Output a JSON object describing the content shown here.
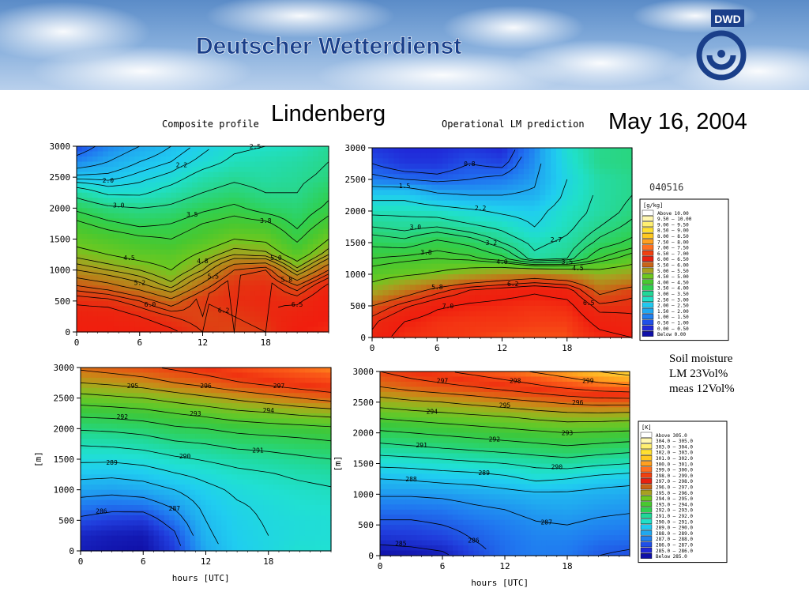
{
  "header": {
    "org_name": "Deutscher Wetterdienst",
    "logo_text": "DWD"
  },
  "title": {
    "place": "Lindenberg",
    "date": "May 16, 2004"
  },
  "panels": {
    "left_title": "Composite profile",
    "right_title": "Operational LM prediction",
    "run_code": "040516"
  },
  "note": {
    "line1": "Soil moisture",
    "line2": "LM 23Vol%",
    "line3": "meas 12Vol%"
  },
  "chart_data": [
    {
      "type": "heatmap",
      "id": "humidity_composite",
      "title": "Composite profile",
      "xlabel": "",
      "ylabel": "",
      "xlim": [
        0,
        24
      ],
      "ylim": [
        0,
        3000
      ],
      "xticks": [
        0,
        6,
        12,
        18
      ],
      "yticks": [
        0,
        500,
        1000,
        1500,
        2000,
        2500,
        3000
      ],
      "x": [
        0,
        3,
        6,
        9,
        12,
        15,
        18,
        21,
        24
      ],
      "y": [
        0,
        250,
        500,
        750,
        1000,
        1250,
        1500,
        1750,
        2000,
        2250,
        2500,
        2750,
        3000
      ],
      "values": [
        [
          7.0,
          7.0,
          6.9,
          6.6,
          6.2,
          6.0,
          6.2,
          7.0,
          7.2
        ],
        [
          6.8,
          6.8,
          6.5,
          6.2,
          6.0,
          6.2,
          6.4,
          6.8,
          7.0
        ],
        [
          6.4,
          6.3,
          6.0,
          5.6,
          6.2,
          6.4,
          6.5,
          6.4,
          7.0
        ],
        [
          5.8,
          5.6,
          5.3,
          4.9,
          5.6,
          6.3,
          6.4,
          5.8,
          6.6
        ],
        [
          5.2,
          5.0,
          4.8,
          4.5,
          5.0,
          5.8,
          6.0,
          4.9,
          5.8
        ],
        [
          4.7,
          4.5,
          4.3,
          4.2,
          4.6,
          5.0,
          4.9,
          4.2,
          5.0
        ],
        [
          4.3,
          4.1,
          3.9,
          3.8,
          4.1,
          4.5,
          4.4,
          3.7,
          4.5
        ],
        [
          3.9,
          3.6,
          3.4,
          3.5,
          3.8,
          4.0,
          3.9,
          3.4,
          4.0
        ],
        [
          3.4,
          3.1,
          3.0,
          3.1,
          3.4,
          3.6,
          3.3,
          3.2,
          3.6
        ],
        [
          2.8,
          2.4,
          2.4,
          2.7,
          3.0,
          3.2,
          3.0,
          3.0,
          3.4
        ],
        [
          1.9,
          1.9,
          2.1,
          2.3,
          2.7,
          2.9,
          2.8,
          2.9,
          3.1
        ],
        [
          1.2,
          1.5,
          1.8,
          2.0,
          2.3,
          2.6,
          2.7,
          2.8,
          3.0
        ],
        [
          0.7,
          1.2,
          1.5,
          1.8,
          2.1,
          2.4,
          2.5,
          2.6,
          2.9
        ]
      ],
      "contour_labels": [
        "1.0",
        "1.5",
        "1.8",
        "2.0",
        "2.2",
        "2.5",
        "3.0",
        "3.5",
        "3.8",
        "4.5",
        "4.8",
        "5.0",
        "5.2",
        "5.5",
        "5.8",
        "6.0",
        "6.2",
        "6.5"
      ]
    },
    {
      "type": "heatmap",
      "id": "humidity_lm",
      "title": "Operational LM prediction",
      "xlabel": "",
      "ylabel": "",
      "xlim": [
        0,
        24
      ],
      "ylim": [
        0,
        3000
      ],
      "xticks": [
        0,
        6,
        12,
        18
      ],
      "yticks": [
        0,
        500,
        1000,
        1500,
        2000,
        2500,
        3000
      ],
      "x": [
        0,
        3,
        6,
        9,
        12,
        15,
        18,
        21,
        24
      ],
      "y": [
        0,
        250,
        500,
        750,
        1000,
        1250,
        1500,
        1750,
        2000,
        2250,
        2500,
        2750,
        3000
      ],
      "values": [
        [
          6.6,
          7.3,
          7.4,
          7.5,
          7.6,
          7.6,
          7.6,
          7.2,
          7.0
        ],
        [
          6.4,
          7.0,
          7.3,
          7.4,
          7.4,
          7.5,
          7.5,
          6.8,
          6.6
        ],
        [
          5.8,
          6.4,
          6.9,
          7.1,
          7.2,
          7.3,
          7.2,
          6.3,
          6.4
        ],
        [
          4.8,
          5.4,
          6.0,
          6.5,
          6.7,
          6.9,
          6.7,
          5.6,
          6.0
        ],
        [
          4.2,
          4.4,
          4.6,
          4.9,
          5.2,
          5.4,
          5.2,
          4.8,
          5.0
        ],
        [
          3.8,
          3.9,
          4.0,
          3.9,
          3.6,
          2.8,
          3.0,
          3.8,
          4.2
        ],
        [
          3.4,
          3.3,
          3.6,
          3.4,
          3.0,
          2.6,
          2.8,
          3.3,
          3.6
        ],
        [
          3.0,
          2.9,
          3.0,
          2.8,
          2.6,
          2.2,
          2.6,
          3.0,
          3.3
        ],
        [
          2.6,
          2.6,
          2.5,
          2.3,
          2.1,
          2.0,
          2.5,
          2.8,
          3.1
        ],
        [
          2.0,
          2.0,
          1.6,
          1.5,
          1.5,
          1.6,
          2.3,
          2.8,
          3.0
        ],
        [
          1.1,
          1.0,
          0.9,
          1.0,
          1.1,
          1.4,
          2.2,
          2.8,
          3.0
        ],
        [
          0.8,
          0.6,
          0.6,
          0.8,
          0.7,
          1.3,
          2.3,
          3.0,
          3.1
        ],
        [
          0.6,
          0.5,
          0.5,
          0.6,
          0.5,
          1.2,
          2.4,
          3.0,
          3.1
        ]
      ],
      "contour_labels": [
        "0.5",
        "0.8",
        "1.0",
        "1.5",
        "2.2",
        "2.7",
        "3.0",
        "3.2",
        "3.5",
        "3.8",
        "4.0",
        "4.5",
        "5.8",
        "6.2",
        "6.5",
        "7.0"
      ]
    },
    {
      "type": "heatmap",
      "id": "theta_composite",
      "title": "",
      "xlabel": "hours [UTC]",
      "ylabel": "[m]",
      "xlim": [
        0,
        24
      ],
      "ylim": [
        0,
        3000
      ],
      "xticks": [
        0,
        6,
        12,
        18
      ],
      "yticks": [
        0,
        500,
        1000,
        1500,
        2000,
        2500,
        3000
      ],
      "x": [
        0,
        3,
        6,
        9,
        12,
        15,
        18,
        21,
        24
      ],
      "y": [
        0,
        250,
        500,
        750,
        1000,
        1250,
        1500,
        1750,
        2000,
        2250,
        2500,
        2750,
        3000
      ],
      "values": [
        [
          284.8,
          284.6,
          284.5,
          285.5,
          287.5,
          288.5,
          289.0,
          289.5,
          289.5
        ],
        [
          285.0,
          284.8,
          284.7,
          285.8,
          287.8,
          288.6,
          289.0,
          289.3,
          289.4
        ],
        [
          285.8,
          285.5,
          285.4,
          286.5,
          288.0,
          288.7,
          289.1,
          289.3,
          289.4
        ],
        [
          286.6,
          286.4,
          286.5,
          287.2,
          288.3,
          288.9,
          289.2,
          289.5,
          289.6
        ],
        [
          287.4,
          287.3,
          287.5,
          288.0,
          288.7,
          289.2,
          289.5,
          289.7,
          289.9
        ],
        [
          288.3,
          288.2,
          288.4,
          288.9,
          289.3,
          289.7,
          289.9,
          290.2,
          290.4
        ],
        [
          289.2,
          289.2,
          289.4,
          289.8,
          290.1,
          290.4,
          290.6,
          290.8,
          291.0
        ],
        [
          290.1,
          290.2,
          290.4,
          290.8,
          291.0,
          291.3,
          291.4,
          291.6,
          291.8
        ],
        [
          291.1,
          291.2,
          291.4,
          291.8,
          292.0,
          292.3,
          292.5,
          292.6,
          292.8
        ],
        [
          292.3,
          292.4,
          292.6,
          293.0,
          293.3,
          293.7,
          293.9,
          294.2,
          294.4
        ],
        [
          293.6,
          293.8,
          294.0,
          294.4,
          294.8,
          295.2,
          295.6,
          296.0,
          296.4
        ],
        [
          295.0,
          295.2,
          295.5,
          296.0,
          296.4,
          296.9,
          297.3,
          297.7,
          298.0
        ],
        [
          296.2,
          296.5,
          296.8,
          297.2,
          297.6,
          298.1,
          298.5,
          298.8,
          299.1
        ]
      ],
      "contour_labels": [
        "286",
        "287",
        "288",
        "289",
        "290",
        "291",
        "292",
        "293",
        "294",
        "295",
        "296",
        "297"
      ]
    },
    {
      "type": "heatmap",
      "id": "theta_lm",
      "title": "",
      "xlabel": "hours [UTC]",
      "ylabel": "[m]",
      "xlim": [
        0,
        24
      ],
      "ylim": [
        0,
        3000
      ],
      "xticks": [
        0,
        6,
        12,
        18
      ],
      "yticks": [
        0,
        500,
        1000,
        1500,
        2000,
        2500,
        3000
      ],
      "x": [
        0,
        3,
        6,
        9,
        12,
        15,
        18,
        21,
        24
      ],
      "y": [
        0,
        250,
        500,
        750,
        1000,
        1250,
        1500,
        1750,
        2000,
        2250,
        2500,
        2750,
        3000
      ],
      "values": [
        [
          284.5,
          284.6,
          284.8,
          285.6,
          286.3,
          286.6,
          286.5,
          286.0,
          285.8
        ],
        [
          285.2,
          285.3,
          285.5,
          286.0,
          286.4,
          286.7,
          286.7,
          286.4,
          286.3
        ],
        [
          285.8,
          285.8,
          286.0,
          286.3,
          286.6,
          286.9,
          287.0,
          286.8,
          286.7
        ],
        [
          286.4,
          286.4,
          286.5,
          286.8,
          287.0,
          287.3,
          287.4,
          287.2,
          287.1
        ],
        [
          287.1,
          287.1,
          287.2,
          287.4,
          287.6,
          287.8,
          287.8,
          287.6,
          287.5
        ],
        [
          288.0,
          288.1,
          288.3,
          288.4,
          288.7,
          289.2,
          289.0,
          288.6,
          288.4
        ],
        [
          289.3,
          289.4,
          289.6,
          289.8,
          290.0,
          290.3,
          290.5,
          290.2,
          290.0
        ],
        [
          290.6,
          290.8,
          291.0,
          291.2,
          291.4,
          291.6,
          291.8,
          291.6,
          291.4
        ],
        [
          291.8,
          292.0,
          292.2,
          292.4,
          292.6,
          292.8,
          293.0,
          292.9,
          292.8
        ],
        [
          293.1,
          293.3,
          293.5,
          293.7,
          293.9,
          294.2,
          294.4,
          294.4,
          294.3
        ],
        [
          294.5,
          294.8,
          295.0,
          295.3,
          295.6,
          295.9,
          296.2,
          296.4,
          296.4
        ],
        [
          296.0,
          296.4,
          296.7,
          297.0,
          297.4,
          297.8,
          298.2,
          298.6,
          298.8
        ],
        [
          297.0,
          297.5,
          297.9,
          298.3,
          298.7,
          299.1,
          299.5,
          300.0,
          300.4
        ]
      ],
      "contour_labels": [
        "285",
        "286",
        "287",
        "288",
        "289",
        "290",
        "291",
        "292",
        "293",
        "294",
        "295",
        "296",
        "297",
        "298",
        "299",
        "300"
      ]
    }
  ],
  "legend_q": {
    "unit": "[g/kg]",
    "rows": [
      "Above  10.00",
      "9.50 – 10.00",
      "9.00 – 9.50",
      "8.50 – 9.00",
      "8.00 – 8.50",
      "7.50 – 8.00",
      "7.00 – 7.50",
      "6.50 – 7.00",
      "6.00 – 6.50",
      "5.50 – 6.00",
      "5.00 – 5.50",
      "4.50 – 5.00",
      "4.00 – 4.50",
      "3.50 – 4.00",
      "3.00 – 3.50",
      "2.50 – 3.00",
      "2.00 – 2.50",
      "1.50 – 2.00",
      "1.00 – 1.50",
      "0.50 – 1.00",
      "0.00 – 0.50",
      "Below  0.00"
    ],
    "colors": [
      "#ffffff",
      "#fff7b0",
      "#ffef70",
      "#ffe030",
      "#ffc820",
      "#ffa020",
      "#ff7020",
      "#f04010",
      "#e82010",
      "#c86418",
      "#a8a020",
      "#6ec820",
      "#48c830",
      "#30d050",
      "#20d898",
      "#20e0c8",
      "#20c8f0",
      "#20a8f0",
      "#2080f0",
      "#2050e8",
      "#2028d8",
      "#1010a8"
    ]
  },
  "legend_t": {
    "unit": "[K]",
    "rows": [
      "Above  305.0",
      "304.0 – 305.0",
      "303.0 – 304.0",
      "302.0 – 303.0",
      "301.0 – 302.0",
      "300.0 – 301.0",
      "299.0 – 300.0",
      "298.0 – 299.0",
      "297.0 – 298.0",
      "296.0 – 297.0",
      "295.0 – 296.0",
      "294.0 – 295.0",
      "293.0 – 294.0",
      "292.0 – 293.0",
      "291.0 – 292.0",
      "290.0 – 291.0",
      "289.0 – 290.0",
      "288.0 – 289.0",
      "287.0 – 288.0",
      "286.0 – 287.0",
      "285.0 – 286.0",
      "Below  285.0"
    ],
    "colors": [
      "#ffffff",
      "#fff7b0",
      "#ffef70",
      "#ffe030",
      "#ffc820",
      "#ffa020",
      "#ff7020",
      "#f04010",
      "#e82010",
      "#c86418",
      "#a8a020",
      "#6ec820",
      "#48c830",
      "#30d050",
      "#20d898",
      "#20e0c8",
      "#20c8f0",
      "#20a8f0",
      "#2080f0",
      "#2050e8",
      "#2028d8",
      "#1010a8"
    ]
  }
}
